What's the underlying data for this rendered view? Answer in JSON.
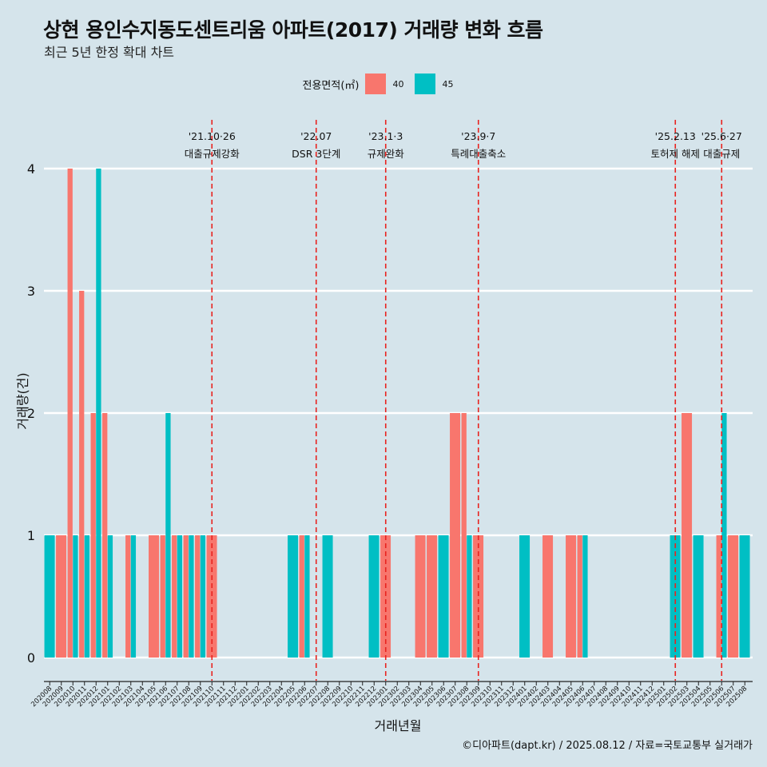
{
  "title": "상현 용인수지동도센트리움 아파트(2017) 거래량 변화 흐름",
  "subtitle": "최근 5년 한정 확대 차트",
  "caption": "©디아파트(dapt.kr) / 2025.08.12 / 자료=국토교통부 실거래가",
  "legend": {
    "title": "전용면적(㎡)",
    "items": [
      {
        "label": "40",
        "color": "#F8766D"
      },
      {
        "label": "45",
        "color": "#00BFC4"
      }
    ]
  },
  "chart_data": {
    "type": "bar",
    "xlabel": "거래년월",
    "ylabel": "거래량(건)",
    "ylim": [
      0,
      4
    ],
    "yticks": [
      0,
      1,
      2,
      3,
      4
    ],
    "grid": true,
    "legend_position": "top",
    "categories": [
      "202008",
      "202009",
      "202010",
      "202011",
      "202012",
      "202101",
      "202102",
      "202103",
      "202104",
      "202105",
      "202106",
      "202107",
      "202108",
      "202109",
      "202110",
      "202111",
      "202112",
      "202201",
      "202202",
      "202203",
      "202204",
      "202205",
      "202206",
      "202207",
      "202208",
      "202209",
      "202210",
      "202211",
      "202212",
      "202301",
      "202302",
      "202303",
      "202304",
      "202305",
      "202306",
      "202307",
      "202308",
      "202309",
      "202310",
      "202311",
      "202312",
      "202401",
      "202402",
      "202403",
      "202404",
      "202405",
      "202406",
      "202407",
      "202408",
      "202409",
      "202410",
      "202411",
      "202412",
      "202501",
      "202502",
      "202503",
      "202504",
      "202505",
      "202506",
      "202507",
      "202508"
    ],
    "series": [
      {
        "name": "40",
        "color": "#F8766D",
        "values": [
          0,
          1,
          4,
          3,
          2,
          2,
          0,
          1,
          0,
          1,
          1,
          1,
          1,
          1,
          1,
          0,
          0,
          0,
          0,
          0,
          0,
          0,
          1,
          0,
          0,
          0,
          0,
          0,
          0,
          1,
          0,
          0,
          1,
          1,
          0,
          2,
          2,
          1,
          0,
          0,
          0,
          0,
          0,
          1,
          0,
          1,
          1,
          0,
          0,
          0,
          0,
          0,
          0,
          0,
          0,
          2,
          0,
          0,
          1,
          1,
          0
        ]
      },
      {
        "name": "45",
        "color": "#00BFC4",
        "values": [
          1,
          0,
          1,
          1,
          4,
          1,
          0,
          1,
          0,
          0,
          2,
          1,
          1,
          1,
          0,
          0,
          0,
          0,
          0,
          0,
          0,
          1,
          1,
          0,
          1,
          0,
          0,
          0,
          1,
          0,
          0,
          0,
          0,
          0,
          1,
          0,
          1,
          0,
          0,
          0,
          0,
          1,
          0,
          0,
          0,
          0,
          1,
          0,
          0,
          0,
          0,
          0,
          0,
          0,
          1,
          0,
          1,
          0,
          2,
          0,
          1
        ]
      }
    ],
    "events": [
      {
        "date": "'21.10·26",
        "label": "대출규제강화",
        "at": "202110"
      },
      {
        "date": "'22.07",
        "label": "DSR 3단계",
        "at": "202207"
      },
      {
        "date": "'23.1·3",
        "label": "규제완화",
        "at": "202301"
      },
      {
        "date": "'23.9·7",
        "label": "특례대출축소",
        "at": "202309"
      },
      {
        "date": "'25.2.13",
        "label": "토허제 해제",
        "at": "202502"
      },
      {
        "date": "'25.6·27",
        "label": "대출규제",
        "at": "202506"
      }
    ]
  }
}
